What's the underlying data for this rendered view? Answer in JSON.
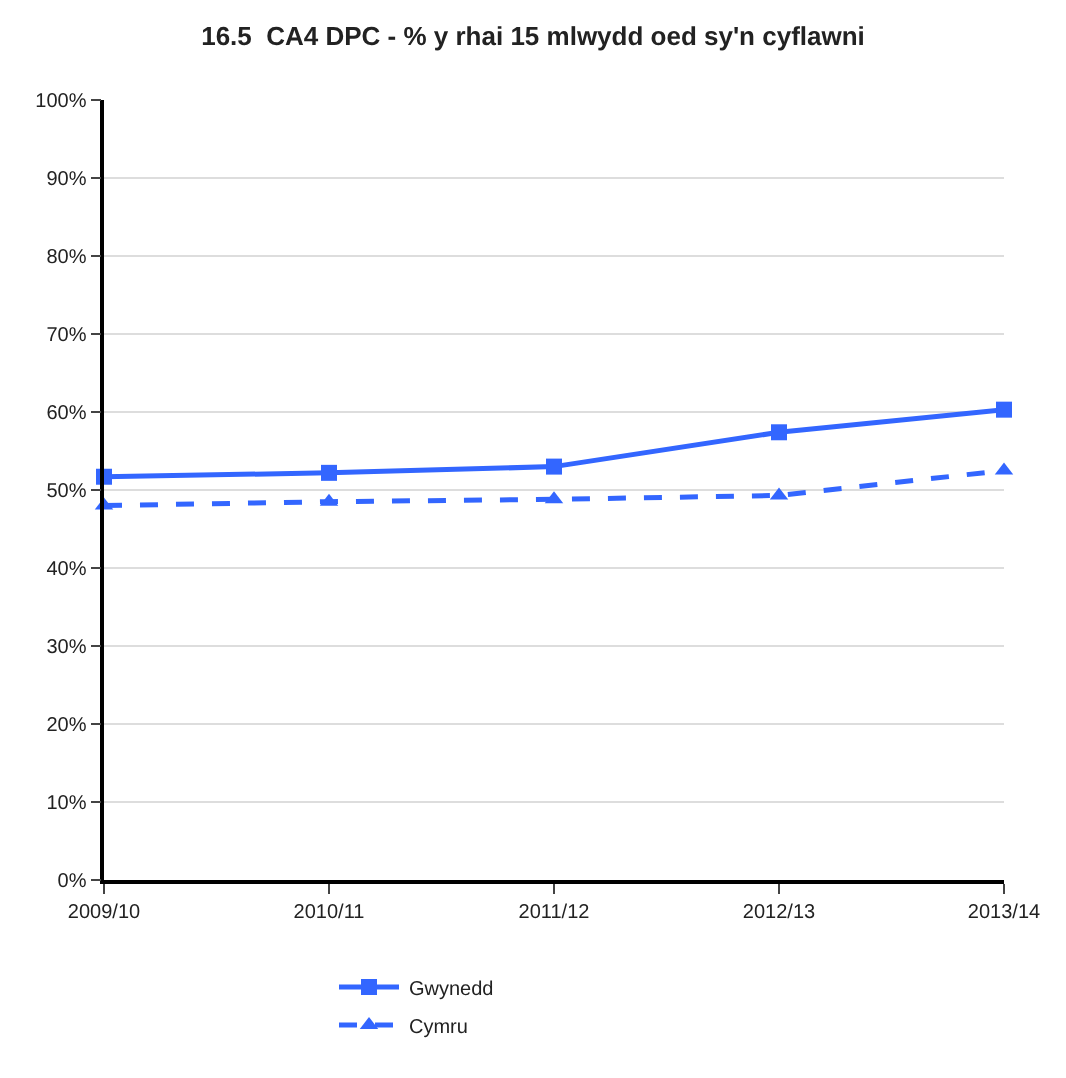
{
  "chart_data": {
    "type": "line",
    "title": "16.5  CA4 DPC - % y rhai 15 mlwydd oed sy'n cyflawni",
    "categories": [
      "2009/10",
      "2010/11",
      "2011/12",
      "2012/13",
      "2013/14"
    ],
    "series": [
      {
        "name": "Gwynedd",
        "color": "#3366ff",
        "values": [
          51.7,
          52.2,
          53.0,
          57.4,
          60.3
        ],
        "marker": "square",
        "line_style": "solid"
      },
      {
        "name": "Cymru",
        "color": "#3366ff",
        "values": [
          48.0,
          48.5,
          48.8,
          49.3,
          52.5
        ],
        "marker": "triangle",
        "line_style": "dashed"
      }
    ],
    "ylim": [
      0,
      100
    ],
    "yticks": [
      {
        "value": 0,
        "label": "0%"
      },
      {
        "value": 10,
        "label": "10%"
      },
      {
        "value": 20,
        "label": "20%"
      },
      {
        "value": 30,
        "label": "30%"
      },
      {
        "value": 40,
        "label": "40%"
      },
      {
        "value": 50,
        "label": "50%"
      },
      {
        "value": 60,
        "label": "60%"
      },
      {
        "value": 70,
        "label": "70%"
      },
      {
        "value": 80,
        "label": "80%"
      },
      {
        "value": 90,
        "label": "90%"
      },
      {
        "value": 100,
        "label": "100%"
      }
    ],
    "grid": "y",
    "legend": "bottom"
  }
}
